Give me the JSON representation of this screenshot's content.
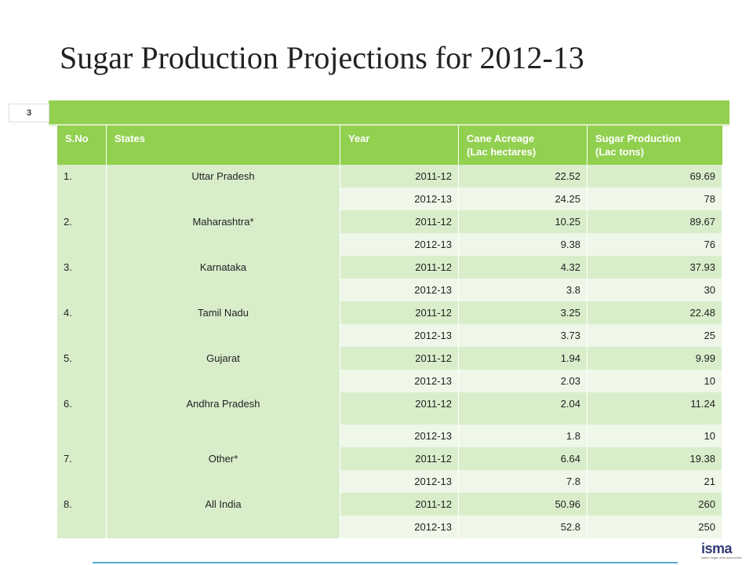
{
  "slide": {
    "title": "Sugar Production Projections for 2012-13",
    "number": "3"
  },
  "table": {
    "headers": {
      "sno": "S.No",
      "states": "States",
      "year": "Year",
      "acreage_line1": "Cane Acreage",
      "acreage_line2": "(Lac hectares)",
      "production_line1": "Sugar Production",
      "production_line2": "(Lac tons)"
    },
    "rows": [
      {
        "sno": "1.",
        "state": "Uttar Pradesh",
        "y1": "2011-12",
        "a1": "22.52",
        "p1": "69.69",
        "y2": "2012-13",
        "a2": "24.25",
        "p2": "78"
      },
      {
        "sno": "2.",
        "state": "Maharashtra*",
        "y1": "2011-12",
        "a1": "10.25",
        "p1": "89.67",
        "y2": "2012-13",
        "a2": "9.38",
        "p2": "76"
      },
      {
        "sno": "3.",
        "state": "Karnataka",
        "y1": "2011-12",
        "a1": "4.32",
        "p1": "37.93",
        "y2": "2012-13",
        "a2": "3.8",
        "p2": "30"
      },
      {
        "sno": "4.",
        "state": "Tamil Nadu",
        "y1": "2011-12",
        "a1": "3.25",
        "p1": "22.48",
        "y2": "2012-13",
        "a2": "3.73",
        "p2": "25"
      },
      {
        "sno": "5.",
        "state": "Gujarat",
        "y1": "2011-12",
        "a1": "1.94",
        "p1": "9.99",
        "y2": "2012-13",
        "a2": "2.03",
        "p2": "10"
      },
      {
        "sno": "6.",
        "state": "Andhra Pradesh",
        "y1": "2011-12",
        "a1": "2.04",
        "p1": "11.24",
        "y2": "2012-13",
        "a2": "1.8",
        "p2": "10"
      },
      {
        "sno": "7.",
        "state": "Other*",
        "y1": "2011-12",
        "a1": "6.64",
        "p1": "19.38",
        "y2": "2012-13",
        "a2": "7.8",
        "p2": "21"
      },
      {
        "sno": "8.",
        "state": "All India",
        "y1": "2011-12",
        "a1": "50.96",
        "p1": "260",
        "y2": "2012-13",
        "a2": "52.8",
        "p2": "250"
      }
    ]
  },
  "logo": {
    "name": "isma",
    "tagline": "indian sugar mills association"
  }
}
